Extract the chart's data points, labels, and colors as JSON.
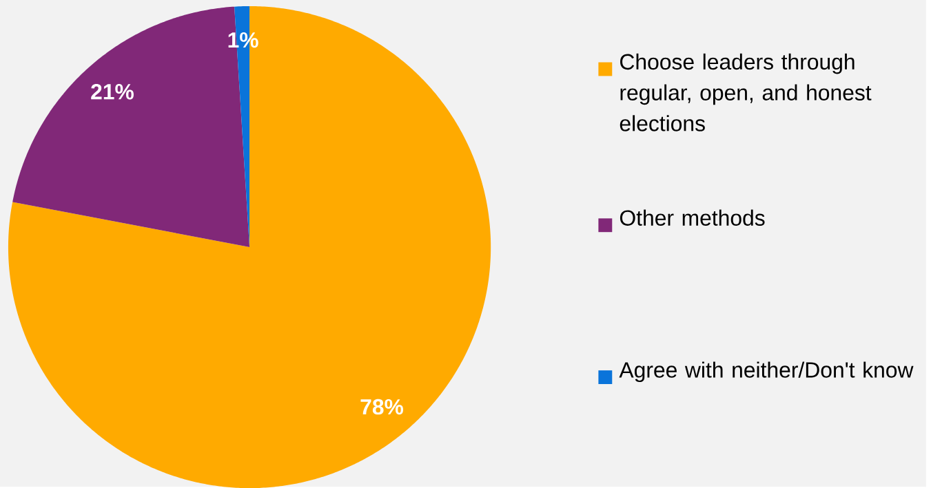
{
  "chart_data": {
    "type": "pie",
    "categories": [
      "Choose leaders through regular, open, and honest elections",
      "Other methods",
      "Agree with neither/Don't know"
    ],
    "values": [
      78,
      21,
      1
    ],
    "colors": [
      "#ffaa00",
      "#812878",
      "#0a74da"
    ],
    "value_labels": [
      "78%",
      "21%",
      "1%"
    ],
    "legend": "right"
  }
}
